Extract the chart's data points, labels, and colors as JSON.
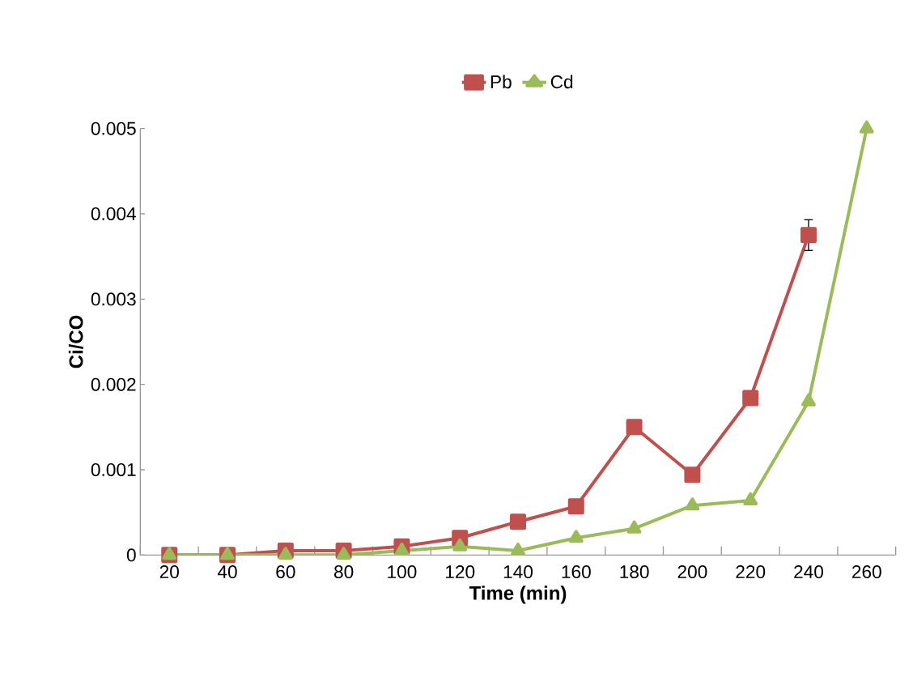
{
  "chart_data": {
    "type": "line",
    "xlabel": "Time (min)",
    "ylabel": "Ci/CO",
    "categories": [
      "20",
      "40",
      "60",
      "80",
      "100",
      "120",
      "140",
      "160",
      "180",
      "200",
      "220",
      "240",
      "260"
    ],
    "series": [
      {
        "name": "Pb",
        "color": "#c0504d",
        "marker": "square",
        "values": [
          0,
          0,
          5e-05,
          5e-05,
          0.0001,
          0.0002,
          0.00039,
          0.00057,
          0.0015,
          0.00094,
          0.00184,
          0.00375,
          null
        ],
        "errors": [
          null,
          null,
          null,
          null,
          null,
          null,
          null,
          null,
          null,
          null,
          null,
          0.00018,
          null
        ]
      },
      {
        "name": "Cd",
        "color": "#9bbb59",
        "marker": "triangle",
        "values": [
          0,
          0,
          0,
          0,
          5e-05,
          0.0001,
          5e-05,
          0.0002,
          0.00031,
          0.00058,
          0.00064,
          0.0018,
          0.005
        ]
      }
    ],
    "ylim": [
      0,
      0.005
    ],
    "yticks": [
      0,
      0.001,
      0.002,
      0.003,
      0.004,
      0.005
    ],
    "grid": false,
    "legend": "top",
    "line_style": "solid"
  }
}
